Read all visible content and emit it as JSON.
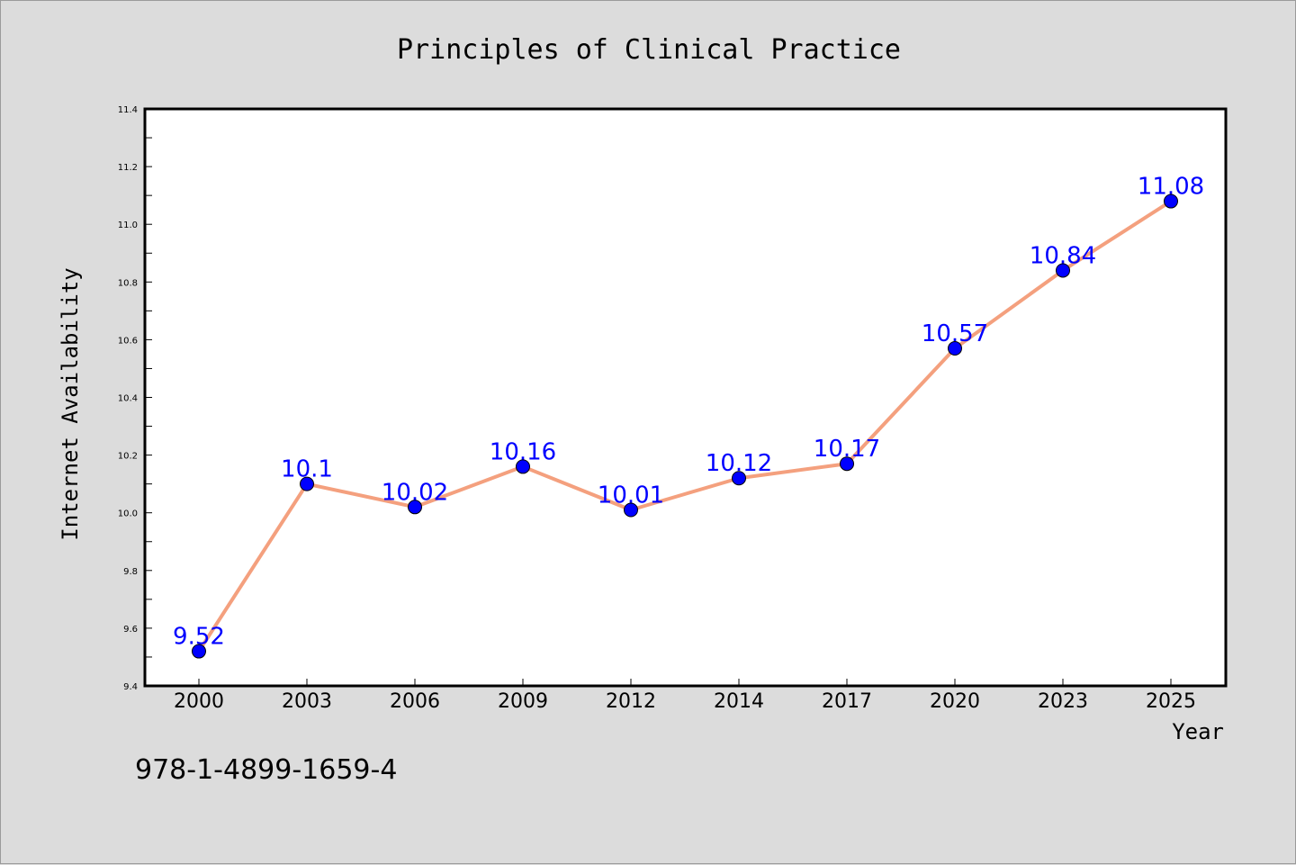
{
  "chart_data": {
    "type": "line",
    "title": "Principles of Clinical Practice",
    "xlabel": "Year",
    "ylabel": "Internet Availability",
    "categories": [
      "2000",
      "2003",
      "2006",
      "2009",
      "2012",
      "2014",
      "2017",
      "2020",
      "2023",
      "2025"
    ],
    "series": [
      {
        "values": [
          9.52,
          10.1,
          10.02,
          10.16,
          10.01,
          10.12,
          10.17,
          10.57,
          10.84,
          11.08
        ],
        "labels": [
          "9.52",
          "10.1",
          "10.02",
          "10.16",
          "10.01",
          "10.12",
          "10.17",
          "10.57",
          "10.84",
          "11.08"
        ],
        "line_color": "#f4a07e",
        "marker_color": "#0000ff"
      }
    ],
    "ylim": [
      9.4,
      11.4
    ],
    "yticks": [
      "9.4",
      "9.6",
      "9.8",
      "10.0",
      "10.2",
      "10.4",
      "10.6",
      "10.8",
      "11.0",
      "11.2",
      "11.4"
    ],
    "grid": false,
    "label_color": "#0000ff"
  },
  "footer": {
    "isbn": "978-1-4899-1659-4"
  }
}
